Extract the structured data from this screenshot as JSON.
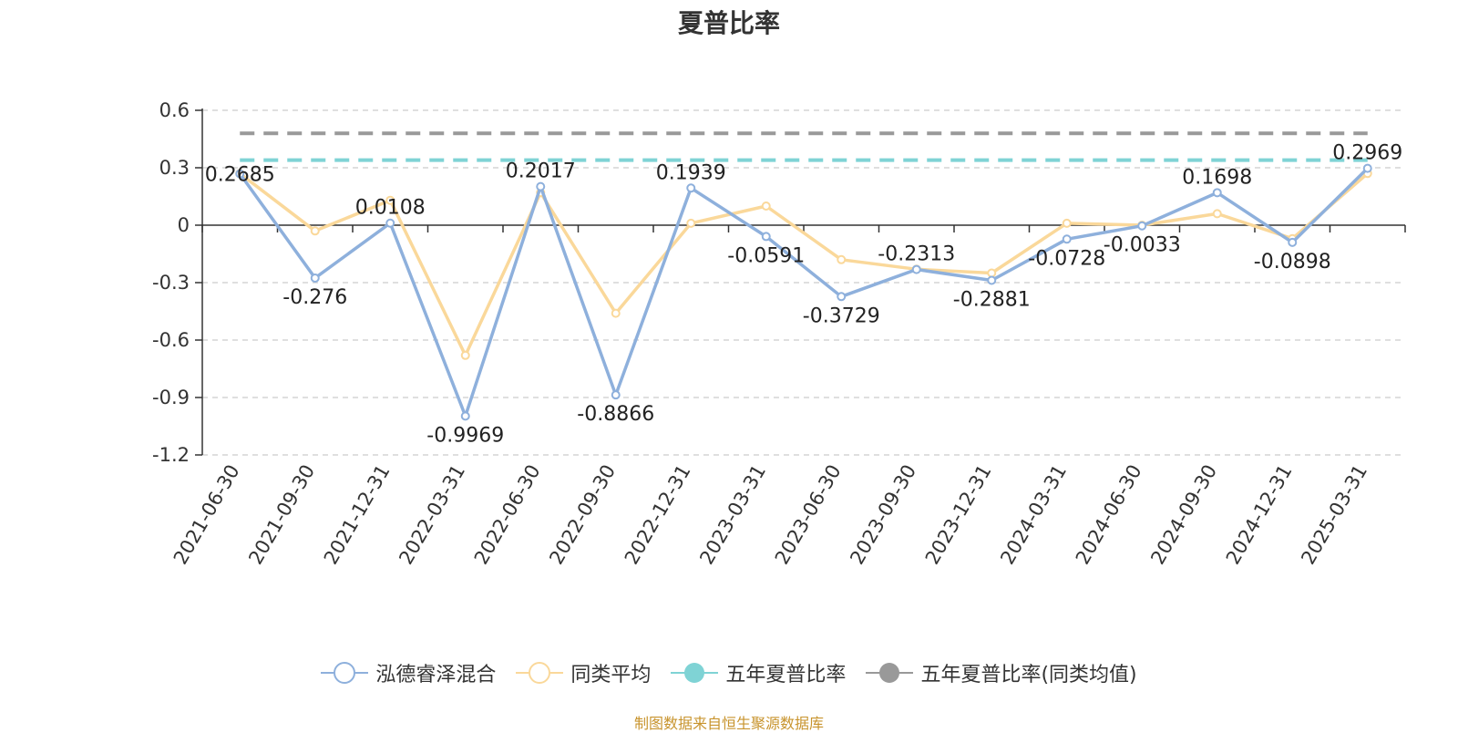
{
  "chart_data": {
    "type": "line",
    "title": "夏普比率",
    "categories": [
      "2021-06-30",
      "2021-09-30",
      "2021-12-31",
      "2022-03-31",
      "2022-06-30",
      "2022-09-30",
      "2022-12-31",
      "2023-03-31",
      "2023-06-30",
      "2023-09-30",
      "2023-12-31",
      "2024-03-31",
      "2024-06-30",
      "2024-09-30",
      "2024-12-31",
      "2025-03-31"
    ],
    "ylim": [
      -1.2,
      0.6
    ],
    "yticks": [
      0.6,
      0.3,
      0,
      -0.3,
      -0.6,
      -0.9,
      -1.2
    ],
    "ytick_labels": [
      "0.6",
      "0.3",
      "0",
      "-0.3",
      "-0.6",
      "-0.9",
      "-1.2"
    ],
    "grid": true,
    "legend_position": "bottom",
    "series": [
      {
        "name": "泓德睿泽混合",
        "color": "#8eb0dc",
        "values": [
          0.2685,
          -0.276,
          0.0108,
          -0.9969,
          0.2017,
          -0.8866,
          0.1939,
          -0.0591,
          -0.3729,
          -0.2313,
          -0.2881,
          -0.0728,
          -0.0033,
          0.1698,
          -0.0898,
          0.2969
        ],
        "labels": [
          "0.2685",
          "-0.276",
          "0.0108",
          "-0.9969",
          "0.2017",
          "-0.8866",
          "0.1939",
          "-0.0591",
          "-0.3729",
          "-0.2313",
          "-0.2881",
          "-0.0728",
          "-0.0033",
          "0.1698",
          "-0.0898",
          "0.2969"
        ]
      },
      {
        "name": "同类平均",
        "color": "#fad89a",
        "values": [
          0.27,
          -0.03,
          0.13,
          -0.68,
          0.17,
          -0.46,
          0.01,
          0.1,
          -0.18,
          -0.23,
          -0.25,
          0.01,
          0.0,
          0.06,
          -0.07,
          0.27
        ]
      },
      {
        "name": "五年夏普比率",
        "color": "#7fd3d5",
        "value": 0.34
      },
      {
        "name": "五年夏普比率(同类均值)",
        "color": "#999999",
        "value": 0.48
      }
    ],
    "source": "制图数据来自恒生聚源数据库"
  }
}
